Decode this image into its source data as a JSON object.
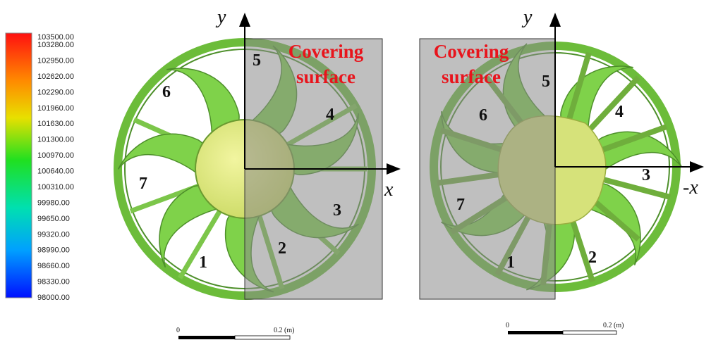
{
  "colorbar": {
    "labels": [
      "103500.00",
      "103280.00",
      "102950.00",
      "102620.00",
      "102290.00",
      "101960.00",
      "101630.00",
      "101300.00",
      "100970.00",
      "100640.00",
      "100310.00",
      "99980.00",
      "99650.00",
      "99320.00",
      "98990.00",
      "98660.00",
      "98330.00",
      "98000.00"
    ]
  },
  "panels": [
    {
      "axis_y": "y",
      "axis_x": "x",
      "covering_surface": [
        "Covering",
        "surface"
      ],
      "blade_numbers": [
        "5",
        "6",
        "4",
        "7",
        "3",
        "2",
        "1"
      ],
      "scale_bar": {
        "start": "0",
        "end": "0.2 (m)"
      }
    },
    {
      "axis_y": "y",
      "axis_x": "-x",
      "covering_surface": [
        "Covering",
        "surface"
      ],
      "blade_numbers": [
        "5",
        "6",
        "4",
        "3",
        "7",
        "2",
        "1"
      ],
      "scale_bar": {
        "start": "0",
        "end": "0.2 (m)"
      }
    }
  ]
}
